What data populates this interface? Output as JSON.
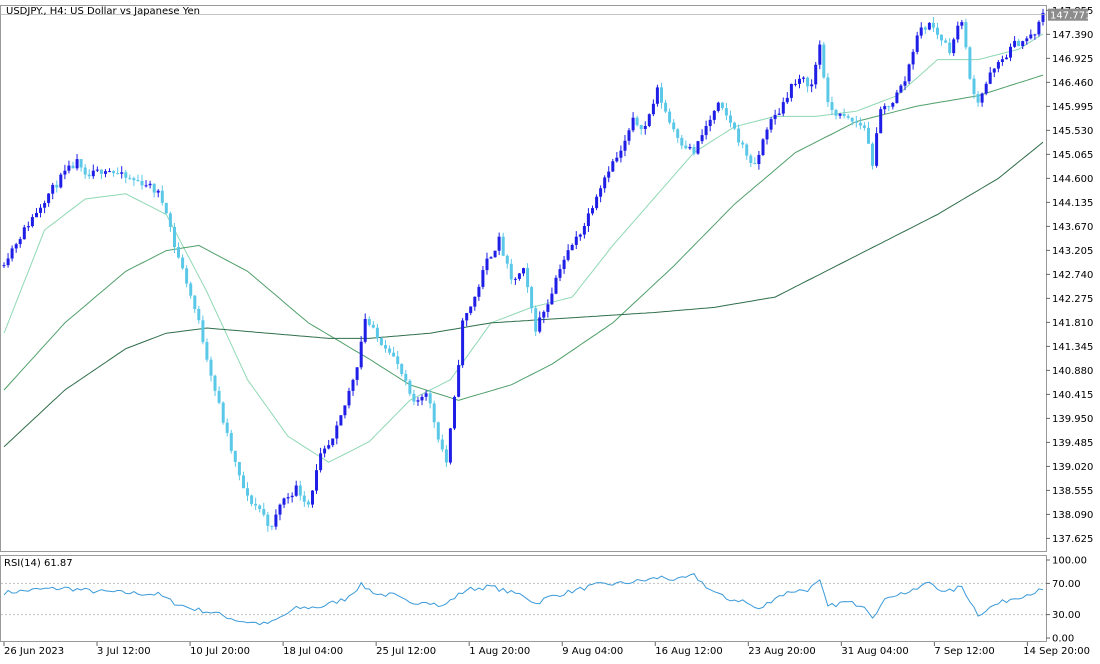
{
  "window": {
    "symbol_title": "USDJPY., H4:  US Dollar vs Japanese Yen",
    "current_price": "147.771"
  },
  "colors": {
    "bull_candle": "#1e1ee6",
    "bear_candle": "#5bc8e8",
    "ma_fast": "#8fd8b4",
    "ma_mid": "#4f9f6a",
    "ma_slow": "#2f6e4a",
    "rsi_line": "#3a9ad9",
    "price_tag_bg": "#8c8c8c"
  },
  "chart_data": [
    {
      "type": "line",
      "subtype": "candlestick",
      "title": "USDJPY., H4:  US Dollar vs Japanese Yen",
      "xlabel": "",
      "ylabel": "",
      "ylim": [
        137.4,
        147.9
      ],
      "grid": false,
      "y_ticks": [
        "147.855",
        "147.390",
        "146.925",
        "146.460",
        "145.995",
        "145.530",
        "145.065",
        "144.600",
        "144.135",
        "143.670",
        "143.205",
        "142.740",
        "142.275",
        "141.810",
        "141.345",
        "140.880",
        "140.415",
        "139.950",
        "139.485",
        "139.020",
        "138.555",
        "138.090",
        "137.625"
      ],
      "x_ticks": [
        "26 Jun 2023",
        "3 Jul 12:00",
        "10 Jul 20:00",
        "18 Jul 04:00",
        "25 Jul 12:00",
        "1 Aug 20:00",
        "9 Aug 04:00",
        "16 Aug 12:00",
        "23 Aug 20:00",
        "31 Aug 04:00",
        "7 Sep 12:00",
        "14 Sep 20:00"
      ],
      "close_anchors": [
        [
          0,
          143.0
        ],
        [
          5,
          143.6
        ],
        [
          10,
          144.2
        ],
        [
          15,
          144.7
        ],
        [
          18,
          144.9
        ],
        [
          20,
          144.6
        ],
        [
          25,
          144.8
        ],
        [
          30,
          144.6
        ],
        [
          35,
          144.5
        ],
        [
          38,
          144.3
        ],
        [
          40,
          144.0
        ],
        [
          42,
          143.3
        ],
        [
          45,
          142.6
        ],
        [
          48,
          141.8
        ],
        [
          52,
          140.5
        ],
        [
          55,
          139.6
        ],
        [
          58,
          138.8
        ],
        [
          60,
          138.4
        ],
        [
          63,
          138.2
        ],
        [
          66,
          137.8
        ],
        [
          68,
          138.3
        ],
        [
          72,
          138.6
        ],
        [
          75,
          138.3
        ],
        [
          78,
          139.2
        ],
        [
          81,
          139.5
        ],
        [
          84,
          140.2
        ],
        [
          87,
          141.0
        ],
        [
          89,
          141.9
        ],
        [
          92,
          141.5
        ],
        [
          95,
          141.3
        ],
        [
          98,
          140.8
        ],
        [
          101,
          140.2
        ],
        [
          104,
          140.5
        ],
        [
          107,
          139.6
        ],
        [
          109,
          139.1
        ],
        [
          111,
          140.3
        ],
        [
          113,
          141.8
        ],
        [
          116,
          142.3
        ],
        [
          119,
          143.0
        ],
        [
          122,
          143.4
        ],
        [
          125,
          142.6
        ],
        [
          128,
          142.8
        ],
        [
          131,
          141.7
        ],
        [
          134,
          142.2
        ],
        [
          137,
          142.9
        ],
        [
          140,
          143.3
        ],
        [
          143,
          143.7
        ],
        [
          146,
          144.3
        ],
        [
          149,
          144.8
        ],
        [
          152,
          145.1
        ],
        [
          155,
          145.7
        ],
        [
          158,
          145.6
        ],
        [
          161,
          146.3
        ],
        [
          164,
          145.7
        ],
        [
          167,
          145.3
        ],
        [
          170,
          145.1
        ],
        [
          173,
          145.6
        ],
        [
          176,
          146.0
        ],
        [
          179,
          145.7
        ],
        [
          182,
          145.2
        ],
        [
          185,
          144.8
        ],
        [
          188,
          145.6
        ],
        [
          191,
          145.9
        ],
        [
          194,
          146.4
        ],
        [
          197,
          146.5
        ],
        [
          199,
          146.4
        ],
        [
          201,
          147.2
        ],
        [
          203,
          146.0
        ],
        [
          206,
          145.8
        ],
        [
          209,
          145.7
        ],
        [
          212,
          145.6
        ],
        [
          214,
          144.9
        ],
        [
          216,
          145.9
        ],
        [
          219,
          146.1
        ],
        [
          222,
          146.5
        ],
        [
          225,
          147.4
        ],
        [
          228,
          147.6
        ],
        [
          231,
          147.3
        ],
        [
          233,
          147.1
        ],
        [
          236,
          147.7
        ],
        [
          238,
          146.5
        ],
        [
          240,
          146.1
        ],
        [
          243,
          146.6
        ],
        [
          246,
          146.9
        ],
        [
          249,
          147.2
        ],
        [
          252,
          147.3
        ],
        [
          254,
          147.4
        ],
        [
          256,
          147.77
        ]
      ],
      "moving_averages": [
        {
          "role": "fast",
          "color": "#8fd8b4",
          "anchors": [
            [
              0,
              141.6
            ],
            [
              10,
              143.6
            ],
            [
              20,
              144.2
            ],
            [
              30,
              144.3
            ],
            [
              40,
              143.9
            ],
            [
              50,
              142.4
            ],
            [
              60,
              140.7
            ],
            [
              70,
              139.6
            ],
            [
              80,
              139.1
            ],
            [
              90,
              139.5
            ],
            [
              100,
              140.3
            ],
            [
              110,
              140.7
            ],
            [
              120,
              141.8
            ],
            [
              130,
              142.1
            ],
            [
              140,
              142.3
            ],
            [
              150,
              143.3
            ],
            [
              160,
              144.2
            ],
            [
              170,
              145.1
            ],
            [
              180,
              145.6
            ],
            [
              190,
              145.8
            ],
            [
              200,
              145.8
            ],
            [
              210,
              145.9
            ],
            [
              220,
              146.2
            ],
            [
              230,
              146.9
            ],
            [
              240,
              146.9
            ],
            [
              250,
              147.1
            ],
            [
              256,
              147.4
            ]
          ]
        },
        {
          "role": "mid",
          "color": "#4f9f6a",
          "anchors": [
            [
              0,
              140.5
            ],
            [
              15,
              141.8
            ],
            [
              30,
              142.8
            ],
            [
              40,
              143.2
            ],
            [
              48,
              143.3
            ],
            [
              60,
              142.8
            ],
            [
              75,
              141.8
            ],
            [
              90,
              141.1
            ],
            [
              100,
              140.6
            ],
            [
              112,
              140.3
            ],
            [
              125,
              140.6
            ],
            [
              135,
              141.0
            ],
            [
              150,
              141.8
            ],
            [
              165,
              142.9
            ],
            [
              180,
              144.1
            ],
            [
              195,
              145.1
            ],
            [
              210,
              145.7
            ],
            [
              225,
              146.0
            ],
            [
              240,
              146.2
            ],
            [
              256,
              146.6
            ]
          ]
        },
        {
          "role": "slow",
          "color": "#2f6e4a",
          "anchors": [
            [
              0,
              139.4
            ],
            [
              15,
              140.5
            ],
            [
              30,
              141.3
            ],
            [
              40,
              141.6
            ],
            [
              50,
              141.7
            ],
            [
              65,
              141.6
            ],
            [
              80,
              141.5
            ],
            [
              90,
              141.5
            ],
            [
              105,
              141.6
            ],
            [
              120,
              141.8
            ],
            [
              140,
              141.9
            ],
            [
              160,
              142.0
            ],
            [
              175,
              142.1
            ],
            [
              190,
              142.3
            ],
            [
              200,
              142.7
            ],
            [
              215,
              143.3
            ],
            [
              230,
              143.9
            ],
            [
              245,
              144.6
            ],
            [
              256,
              145.3
            ]
          ]
        }
      ]
    },
    {
      "type": "line",
      "title": "RSI(14) 61.87",
      "series_name": "RSI(14)",
      "current_value": 61.87,
      "ylim": [
        0,
        100
      ],
      "y_ticks": [
        "100.00",
        "70.00",
        "30.00",
        "0.00"
      ],
      "levels": [
        70,
        30
      ],
      "anchors": [
        [
          0,
          58
        ],
        [
          8,
          62
        ],
        [
          15,
          64
        ],
        [
          22,
          60
        ],
        [
          30,
          58
        ],
        [
          38,
          56
        ],
        [
          42,
          45
        ],
        [
          46,
          38
        ],
        [
          52,
          32
        ],
        [
          58,
          22
        ],
        [
          64,
          18
        ],
        [
          66,
          20
        ],
        [
          72,
          38
        ],
        [
          78,
          40
        ],
        [
          84,
          50
        ],
        [
          88,
          68
        ],
        [
          92,
          56
        ],
        [
          96,
          55
        ],
        [
          100,
          44
        ],
        [
          104,
          48
        ],
        [
          108,
          40
        ],
        [
          111,
          52
        ],
        [
          114,
          62
        ],
        [
          120,
          66
        ],
        [
          125,
          58
        ],
        [
          128,
          55
        ],
        [
          131,
          44
        ],
        [
          134,
          52
        ],
        [
          140,
          60
        ],
        [
          146,
          68
        ],
        [
          152,
          70
        ],
        [
          158,
          74
        ],
        [
          162,
          78
        ],
        [
          166,
          74
        ],
        [
          170,
          80
        ],
        [
          174,
          62
        ],
        [
          178,
          50
        ],
        [
          182,
          48
        ],
        [
          186,
          36
        ],
        [
          190,
          52
        ],
        [
          194,
          60
        ],
        [
          198,
          62
        ],
        [
          201,
          72
        ],
        [
          203,
          40
        ],
        [
          207,
          46
        ],
        [
          212,
          42
        ],
        [
          214,
          28
        ],
        [
          218,
          54
        ],
        [
          224,
          60
        ],
        [
          228,
          72
        ],
        [
          232,
          58
        ],
        [
          236,
          66
        ],
        [
          240,
          30
        ],
        [
          244,
          42
        ],
        [
          248,
          50
        ],
        [
          252,
          56
        ],
        [
          256,
          61.87
        ]
      ]
    }
  ]
}
